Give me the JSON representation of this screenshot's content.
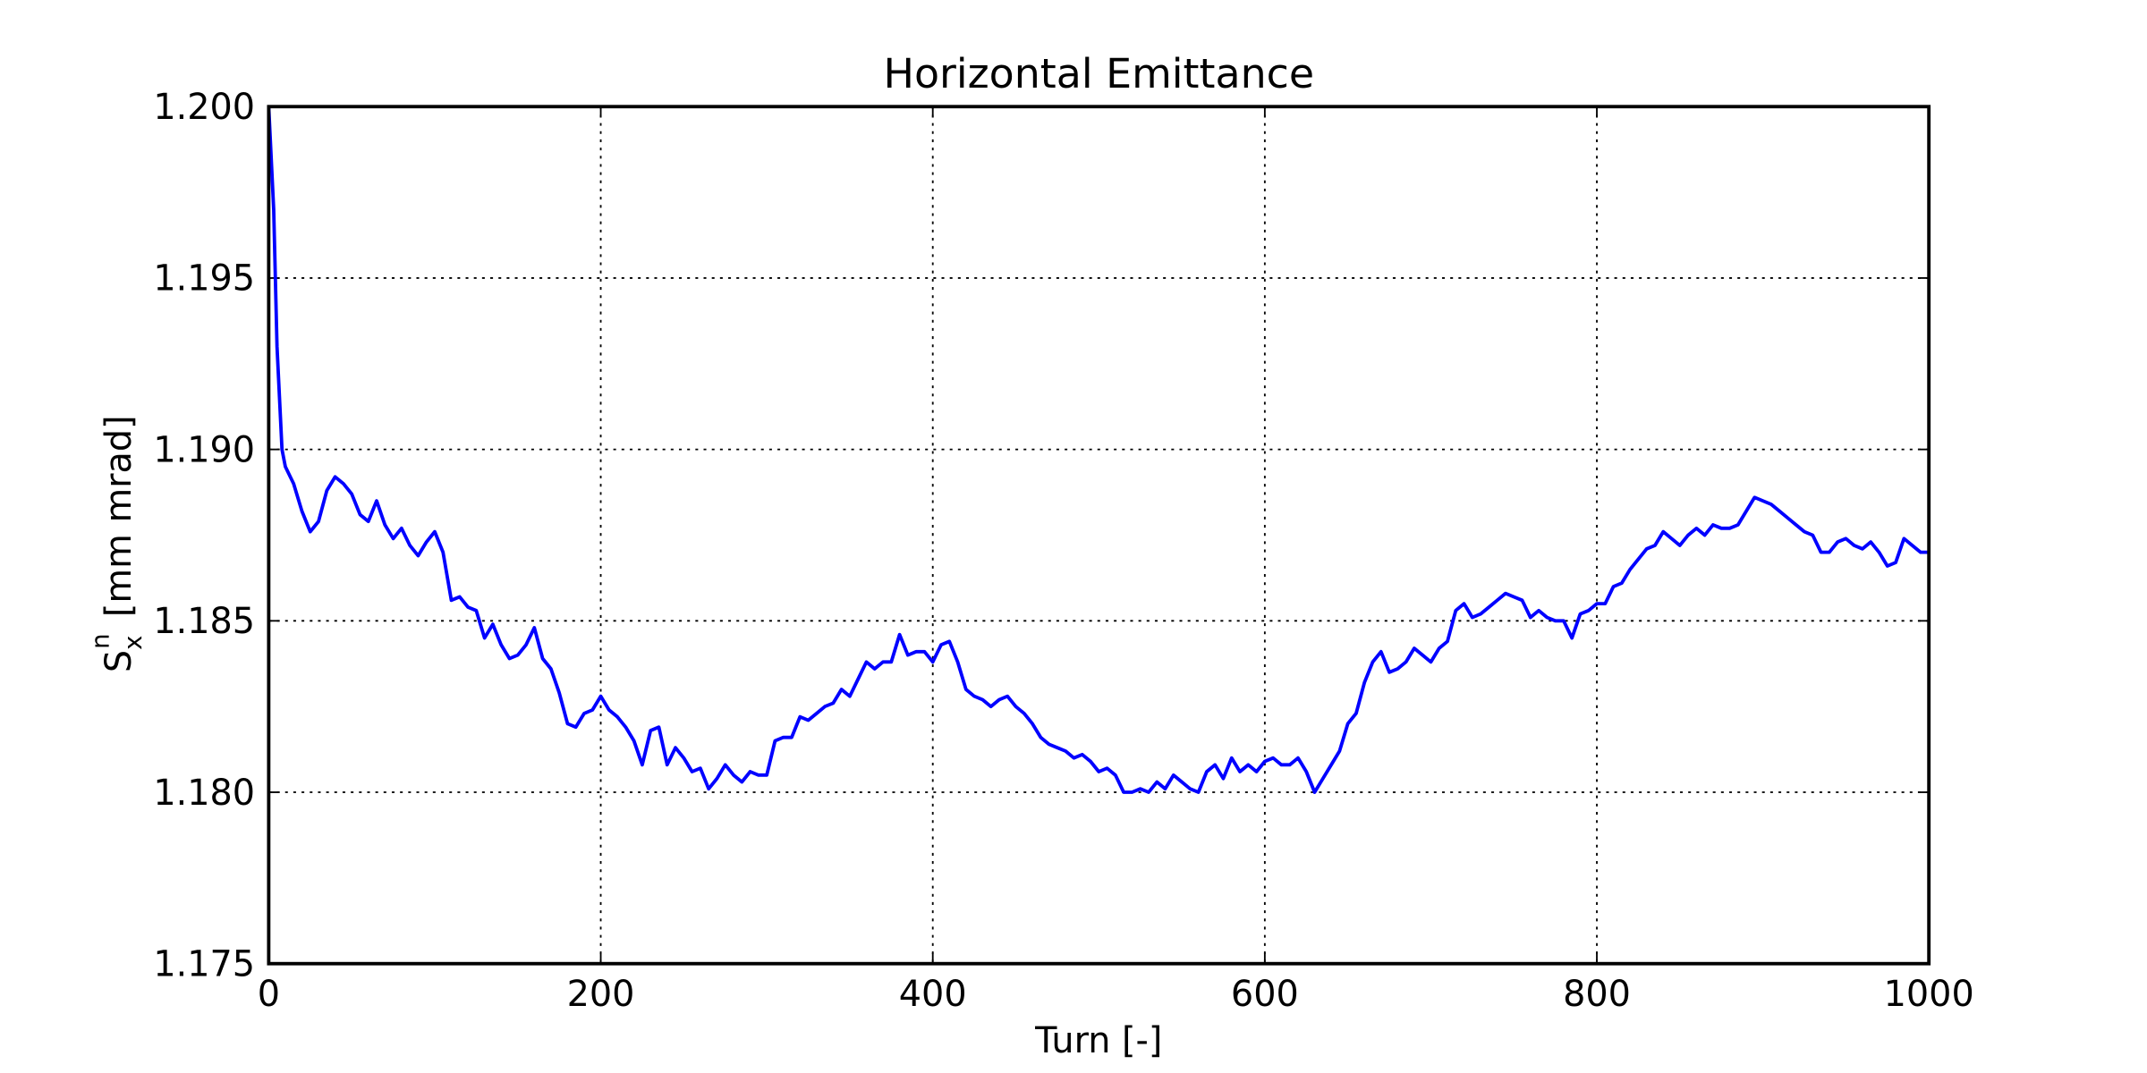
{
  "chart_data": {
    "type": "line",
    "title": "Horizontal Emittance",
    "xlabel": "Turn [-]",
    "ylabel": {
      "symbol": "S",
      "subscript": "x",
      "superscript": "n",
      "unit": "[mm mrad]"
    },
    "xlim": [
      0,
      1000
    ],
    "xticks": [
      0,
      200,
      400,
      600,
      800,
      1000
    ],
    "ylim": [
      1.175,
      1.2
    ],
    "yticks": [
      1.175,
      {
        "value": 1.18,
        "label": "1.180"
      },
      1.185,
      {
        "value": 1.19,
        "label": "1.190"
      },
      1.195,
      {
        "value": 1.2,
        "label": "1.200"
      }
    ],
    "grid": true,
    "series": [
      {
        "color": "#0000ff",
        "x": [
          0,
          3,
          5,
          8,
          10,
          15,
          20,
          25,
          30,
          35,
          40,
          45,
          50,
          55,
          60,
          65,
          70,
          75,
          80,
          85,
          90,
          95,
          100,
          105,
          110,
          115,
          120,
          125,
          130,
          135,
          140,
          145,
          150,
          155,
          160,
          165,
          170,
          175,
          180,
          185,
          190,
          195,
          200,
          205,
          210,
          215,
          220,
          225,
          230,
          235,
          240,
          245,
          250,
          255,
          260,
          265,
          270,
          275,
          280,
          285,
          290,
          295,
          300,
          305,
          310,
          315,
          320,
          325,
          330,
          335,
          340,
          345,
          350,
          355,
          360,
          365,
          370,
          375,
          380,
          385,
          390,
          395,
          400,
          405,
          410,
          415,
          420,
          425,
          430,
          435,
          440,
          445,
          450,
          455,
          460,
          465,
          470,
          475,
          480,
          485,
          490,
          495,
          500,
          505,
          510,
          515,
          520,
          525,
          530,
          535,
          540,
          545,
          550,
          555,
          560,
          565,
          570,
          575,
          580,
          585,
          590,
          595,
          600,
          605,
          610,
          615,
          620,
          625,
          630,
          635,
          640,
          645,
          650,
          655,
          660,
          665,
          670,
          675,
          680,
          685,
          690,
          695,
          700,
          705,
          710,
          715,
          720,
          725,
          730,
          735,
          740,
          745,
          750,
          755,
          760,
          765,
          770,
          775,
          780,
          785,
          790,
          795,
          800,
          805,
          810,
          815,
          820,
          825,
          830,
          835,
          840,
          845,
          850,
          855,
          860,
          865,
          870,
          875,
          880,
          885,
          890,
          895,
          900,
          905,
          910,
          915,
          920,
          925,
          930,
          935,
          940,
          945,
          950,
          955,
          960,
          965,
          970,
          975,
          980,
          985,
          990,
          995,
          1000
        ],
        "values": [
          1.2,
          1.197,
          1.193,
          1.19,
          1.1895,
          1.189,
          1.1882,
          1.1876,
          1.1879,
          1.1888,
          1.1892,
          1.189,
          1.1887,
          1.1881,
          1.1879,
          1.1885,
          1.1878,
          1.1874,
          1.1877,
          1.1872,
          1.1869,
          1.1873,
          1.1876,
          1.187,
          1.1856,
          1.1857,
          1.1854,
          1.1853,
          1.1845,
          1.1849,
          1.1843,
          1.1839,
          1.184,
          1.1843,
          1.1848,
          1.1839,
          1.1836,
          1.1829,
          1.182,
          1.1819,
          1.1823,
          1.1824,
          1.1828,
          1.1824,
          1.1822,
          1.1819,
          1.1815,
          1.1808,
          1.1818,
          1.1819,
          1.1808,
          1.1813,
          1.181,
          1.1806,
          1.1807,
          1.1801,
          1.1804,
          1.1808,
          1.1805,
          1.1803,
          1.1806,
          1.1805,
          1.1805,
          1.1815,
          1.1816,
          1.1816,
          1.1822,
          1.1821,
          1.1823,
          1.1825,
          1.1826,
          1.183,
          1.1828,
          1.1833,
          1.1838,
          1.1836,
          1.1838,
          1.1838,
          1.1846,
          1.184,
          1.1841,
          1.1841,
          1.1838,
          1.1843,
          1.1844,
          1.1838,
          1.183,
          1.1828,
          1.1827,
          1.1825,
          1.1827,
          1.1828,
          1.1825,
          1.1823,
          1.182,
          1.1816,
          1.1814,
          1.1813,
          1.1812,
          1.181,
          1.1811,
          1.1809,
          1.1806,
          1.1807,
          1.1805,
          1.18,
          1.18,
          1.1801,
          1.18,
          1.1803,
          1.1801,
          1.1805,
          1.1803,
          1.1801,
          1.18,
          1.1806,
          1.1808,
          1.1804,
          1.181,
          1.1806,
          1.1808,
          1.1806,
          1.1809,
          1.181,
          1.1808,
          1.1808,
          1.181,
          1.1806,
          1.18,
          1.1804,
          1.1808,
          1.1812,
          1.182,
          1.1823,
          1.1832,
          1.1838,
          1.1841,
          1.1835,
          1.1836,
          1.1838,
          1.1842,
          1.184,
          1.1838,
          1.1842,
          1.1844,
          1.1853,
          1.1855,
          1.1851,
          1.1852,
          1.1854,
          1.1856,
          1.1858,
          1.1857,
          1.1856,
          1.1851,
          1.1853,
          1.1851,
          1.185,
          1.185,
          1.1845,
          1.1852,
          1.1853,
          1.1855,
          1.1855,
          1.186,
          1.1861,
          1.1865,
          1.1868,
          1.1871,
          1.1872,
          1.1876,
          1.1874,
          1.1872,
          1.1875,
          1.1877,
          1.1875,
          1.1878,
          1.1877,
          1.1877,
          1.1878,
          1.1882,
          1.1886,
          1.1885,
          1.1884,
          1.1882,
          1.188,
          1.1878,
          1.1876,
          1.1875,
          1.187,
          1.187,
          1.1873,
          1.1874,
          1.1872,
          1.1871,
          1.1873,
          1.187,
          1.1866,
          1.1867,
          1.1874,
          1.1872,
          1.187,
          1.187
        ]
      }
    ]
  }
}
